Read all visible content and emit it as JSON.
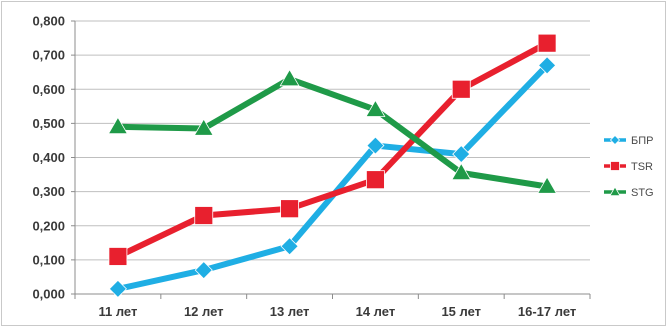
{
  "chart_data": {
    "type": "line",
    "categories": [
      "11 лет",
      "12 лет",
      "13 лет",
      "14 лет",
      "15 лет",
      "16-17 лет"
    ],
    "ylim": [
      0,
      0.8
    ],
    "yticks": [
      0,
      0.1,
      0.2,
      0.3,
      0.4,
      0.5,
      0.6,
      0.7,
      0.8
    ],
    "ytick_labels": [
      "0,000",
      "0,100",
      "0,200",
      "0,300",
      "0,400",
      "0,500",
      "0,600",
      "0,700",
      "0,800"
    ],
    "grid": true,
    "legend": "right",
    "series": [
      {
        "name": "БПР",
        "color": "#1faee4",
        "marker": "diamond",
        "values": [
          0.015,
          0.07,
          0.14,
          0.435,
          0.41,
          0.67
        ]
      },
      {
        "name": "TSR",
        "color": "#e8202e",
        "marker": "square",
        "values": [
          0.11,
          0.23,
          0.25,
          0.335,
          0.6,
          0.735
        ]
      },
      {
        "name": "STG",
        "color": "#1f9a48",
        "marker": "triangle",
        "values": [
          0.49,
          0.485,
          0.63,
          0.54,
          0.355,
          0.315
        ]
      }
    ]
  }
}
